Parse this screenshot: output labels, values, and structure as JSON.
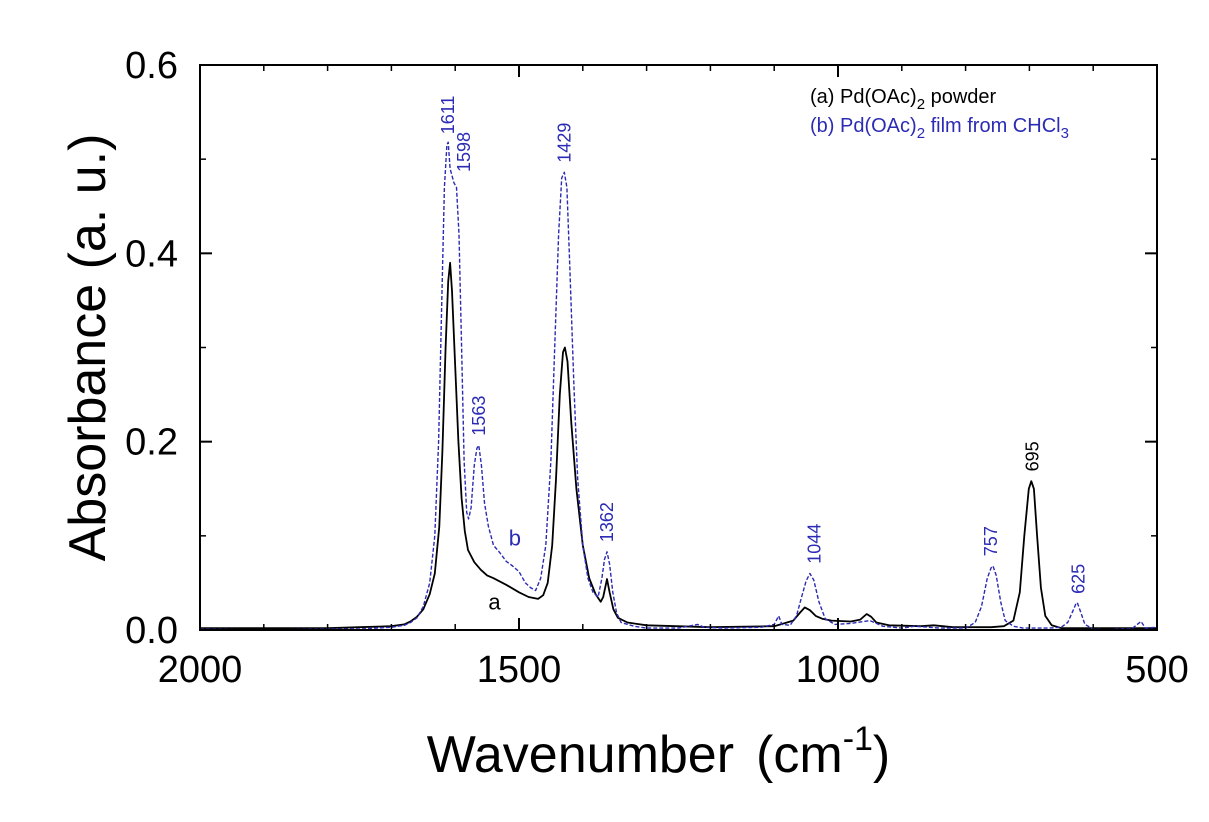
{
  "chart_data": {
    "type": "line",
    "title": "",
    "xlabel": "Wavenumber",
    "xlabel_unit_prefix": "(cm",
    "xlabel_unit_sup": "-1",
    "xlabel_unit_suffix": ")",
    "ylabel": "Absorbance (a. u.)",
    "xlim": [
      2000,
      500
    ],
    "ylim": [
      0,
      0.6
    ],
    "x_reversed": true,
    "x_ticks": [
      2000,
      1500,
      1000,
      500
    ],
    "x_tick_labels": [
      "2000",
      "1500",
      "1000",
      "500"
    ],
    "x_minor_ticks": [
      1900,
      1800,
      1700,
      1600,
      1400,
      1300,
      1200,
      1100,
      900,
      800,
      700,
      600
    ],
    "y_ticks": [
      0.0,
      0.2,
      0.4,
      0.6
    ],
    "y_tick_labels": [
      "0.0",
      "0.2",
      "0.4",
      "0.6"
    ],
    "y_minor_ticks": [
      0.1,
      0.3,
      0.5
    ],
    "grid": false,
    "legend_position": "top-right",
    "legend": [
      {
        "prefix": "(a) Pd(OAc)",
        "sub": "2",
        "suffix": " powder",
        "color": "#000000"
      },
      {
        "prefix": "(b) Pd(OAc)",
        "sub": "2",
        "suffix": " film from CHCl",
        "sub2": "3",
        "color": "#2b2bb5"
      }
    ],
    "series": [
      {
        "id": "a",
        "color": "#000000",
        "dash": "solid",
        "points": [
          [
            2000,
            0.002
          ],
          [
            1900,
            0.002
          ],
          [
            1800,
            0.002
          ],
          [
            1750,
            0.003
          ],
          [
            1700,
            0.004
          ],
          [
            1680,
            0.006
          ],
          [
            1670,
            0.009
          ],
          [
            1660,
            0.014
          ],
          [
            1650,
            0.022
          ],
          [
            1640,
            0.038
          ],
          [
            1632,
            0.06
          ],
          [
            1625,
            0.11
          ],
          [
            1620,
            0.19
          ],
          [
            1615,
            0.3
          ],
          [
            1611,
            0.37
          ],
          [
            1608,
            0.39
          ],
          [
            1605,
            0.36
          ],
          [
            1600,
            0.28
          ],
          [
            1595,
            0.2
          ],
          [
            1590,
            0.14
          ],
          [
            1585,
            0.105
          ],
          [
            1580,
            0.085
          ],
          [
            1570,
            0.072
          ],
          [
            1560,
            0.064
          ],
          [
            1550,
            0.058
          ],
          [
            1540,
            0.055
          ],
          [
            1520,
            0.048
          ],
          [
            1500,
            0.04
          ],
          [
            1485,
            0.035
          ],
          [
            1470,
            0.033
          ],
          [
            1462,
            0.037
          ],
          [
            1455,
            0.05
          ],
          [
            1448,
            0.09
          ],
          [
            1442,
            0.16
          ],
          [
            1436,
            0.25
          ],
          [
            1431,
            0.295
          ],
          [
            1428,
            0.3
          ],
          [
            1424,
            0.285
          ],
          [
            1418,
            0.22
          ],
          [
            1410,
            0.15
          ],
          [
            1400,
            0.09
          ],
          [
            1390,
            0.055
          ],
          [
            1380,
            0.038
          ],
          [
            1372,
            0.03
          ],
          [
            1368,
            0.035
          ],
          [
            1364,
            0.048
          ],
          [
            1362,
            0.054
          ],
          [
            1358,
            0.04
          ],
          [
            1352,
            0.022
          ],
          [
            1345,
            0.013
          ],
          [
            1330,
            0.008
          ],
          [
            1300,
            0.005
          ],
          [
            1200,
            0.003
          ],
          [
            1100,
            0.004
          ],
          [
            1070,
            0.01
          ],
          [
            1060,
            0.018
          ],
          [
            1052,
            0.024
          ],
          [
            1044,
            0.021
          ],
          [
            1035,
            0.015
          ],
          [
            1025,
            0.012
          ],
          [
            1010,
            0.01
          ],
          [
            980,
            0.009
          ],
          [
            965,
            0.011
          ],
          [
            955,
            0.017
          ],
          [
            948,
            0.014
          ],
          [
            940,
            0.008
          ],
          [
            920,
            0.005
          ],
          [
            870,
            0.004
          ],
          [
            850,
            0.005
          ],
          [
            820,
            0.003
          ],
          [
            800,
            0.003
          ],
          [
            760,
            0.003
          ],
          [
            740,
            0.004
          ],
          [
            725,
            0.01
          ],
          [
            715,
            0.04
          ],
          [
            708,
            0.1
          ],
          [
            701,
            0.15
          ],
          [
            697,
            0.158
          ],
          [
            693,
            0.15
          ],
          [
            688,
            0.1
          ],
          [
            682,
            0.045
          ],
          [
            675,
            0.015
          ],
          [
            665,
            0.005
          ],
          [
            650,
            0.002
          ],
          [
            625,
            0.002
          ],
          [
            600,
            0.002
          ],
          [
            550,
            0.002
          ],
          [
            500,
            0.002
          ]
        ]
      },
      {
        "id": "b",
        "color": "#2b2bb5",
        "dash": "dashed",
        "points": [
          [
            2000,
            0.001
          ],
          [
            1900,
            0.0
          ],
          [
            1800,
            0.001
          ],
          [
            1750,
            0.001
          ],
          [
            1700,
            0.003
          ],
          [
            1680,
            0.005
          ],
          [
            1670,
            0.008
          ],
          [
            1660,
            0.013
          ],
          [
            1650,
            0.025
          ],
          [
            1640,
            0.05
          ],
          [
            1632,
            0.1
          ],
          [
            1626,
            0.2
          ],
          [
            1621,
            0.35
          ],
          [
            1617,
            0.47
          ],
          [
            1613,
            0.515
          ],
          [
            1611,
            0.518
          ],
          [
            1608,
            0.49
          ],
          [
            1602,
            0.475
          ],
          [
            1598,
            0.47
          ],
          [
            1594,
            0.42
          ],
          [
            1590,
            0.3
          ],
          [
            1586,
            0.18
          ],
          [
            1582,
            0.125
          ],
          [
            1579,
            0.118
          ],
          [
            1575,
            0.13
          ],
          [
            1570,
            0.175
          ],
          [
            1566,
            0.193
          ],
          [
            1563,
            0.196
          ],
          [
            1559,
            0.175
          ],
          [
            1554,
            0.135
          ],
          [
            1548,
            0.11
          ],
          [
            1540,
            0.09
          ],
          [
            1530,
            0.082
          ],
          [
            1520,
            0.073
          ],
          [
            1510,
            0.068
          ],
          [
            1500,
            0.062
          ],
          [
            1490,
            0.05
          ],
          [
            1482,
            0.045
          ],
          [
            1474,
            0.042
          ],
          [
            1466,
            0.055
          ],
          [
            1458,
            0.09
          ],
          [
            1450,
            0.18
          ],
          [
            1444,
            0.3
          ],
          [
            1438,
            0.42
          ],
          [
            1433,
            0.48
          ],
          [
            1429,
            0.486
          ],
          [
            1425,
            0.47
          ],
          [
            1420,
            0.38
          ],
          [
            1414,
            0.26
          ],
          [
            1408,
            0.16
          ],
          [
            1400,
            0.09
          ],
          [
            1392,
            0.055
          ],
          [
            1384,
            0.04
          ],
          [
            1376,
            0.035
          ],
          [
            1370,
            0.055
          ],
          [
            1366,
            0.075
          ],
          [
            1362,
            0.083
          ],
          [
            1358,
            0.07
          ],
          [
            1353,
            0.04
          ],
          [
            1347,
            0.018
          ],
          [
            1340,
            0.008
          ],
          [
            1320,
            0.004
          ],
          [
            1300,
            0.002
          ],
          [
            1250,
            0.002
          ],
          [
            1220,
            0.006
          ],
          [
            1210,
            0.003
          ],
          [
            1180,
            0.002
          ],
          [
            1120,
            0.003
          ],
          [
            1100,
            0.006
          ],
          [
            1093,
            0.015
          ],
          [
            1088,
            0.006
          ],
          [
            1075,
            0.005
          ],
          [
            1065,
            0.015
          ],
          [
            1057,
            0.035
          ],
          [
            1050,
            0.052
          ],
          [
            1044,
            0.06
          ],
          [
            1038,
            0.053
          ],
          [
            1030,
            0.03
          ],
          [
            1020,
            0.012
          ],
          [
            1005,
            0.006
          ],
          [
            980,
            0.007
          ],
          [
            960,
            0.009
          ],
          [
            950,
            0.01
          ],
          [
            930,
            0.004
          ],
          [
            900,
            0.002
          ],
          [
            880,
            0.004
          ],
          [
            840,
            0.002
          ],
          [
            800,
            0.002
          ],
          [
            785,
            0.008
          ],
          [
            775,
            0.025
          ],
          [
            766,
            0.055
          ],
          [
            760,
            0.066
          ],
          [
            757,
            0.068
          ],
          [
            752,
            0.058
          ],
          [
            745,
            0.03
          ],
          [
            738,
            0.01
          ],
          [
            725,
            0.004
          ],
          [
            710,
            0.002
          ],
          [
            700,
            0.002
          ],
          [
            690,
            0.002
          ],
          [
            670,
            0.002
          ],
          [
            650,
            0.003
          ],
          [
            640,
            0.008
          ],
          [
            632,
            0.02
          ],
          [
            627,
            0.028
          ],
          [
            625,
            0.029
          ],
          [
            620,
            0.02
          ],
          [
            613,
            0.006
          ],
          [
            600,
            0.001
          ],
          [
            580,
            0.0
          ],
          [
            560,
            0.001
          ],
          [
            540,
            0.001
          ],
          [
            525,
            0.009
          ],
          [
            518,
            0.002
          ],
          [
            500,
            0.003
          ]
        ]
      }
    ],
    "peak_labels": [
      {
        "text": "1611",
        "x": 1611,
        "y": 0.52,
        "color": "#2b2bb5"
      },
      {
        "text": "1598",
        "x": 1586,
        "y": 0.48,
        "color": "#2b2bb5"
      },
      {
        "text": "1429",
        "x": 1429,
        "y": 0.49,
        "color": "#2b2bb5"
      },
      {
        "text": "1563",
        "x": 1563,
        "y": 0.2,
        "color": "#2b2bb5"
      },
      {
        "text": "1362",
        "x": 1362,
        "y": 0.087,
        "color": "#2b2bb5"
      },
      {
        "text": "1044",
        "x": 1037,
        "y": 0.064,
        "color": "#2b2bb5"
      },
      {
        "text": "757",
        "x": 760,
        "y": 0.072,
        "color": "#2b2bb5"
      },
      {
        "text": "695",
        "x": 695,
        "y": 0.162,
        "color": "#000000"
      },
      {
        "text": "625",
        "x": 623,
        "y": 0.032,
        "color": "#2b2bb5"
      }
    ],
    "curve_labels": [
      {
        "text": "a",
        "x": 1548,
        "y": 0.022,
        "color": "#000000"
      },
      {
        "text": "b",
        "x": 1516,
        "y": 0.09,
        "color": "#2b2bb5"
      }
    ]
  }
}
